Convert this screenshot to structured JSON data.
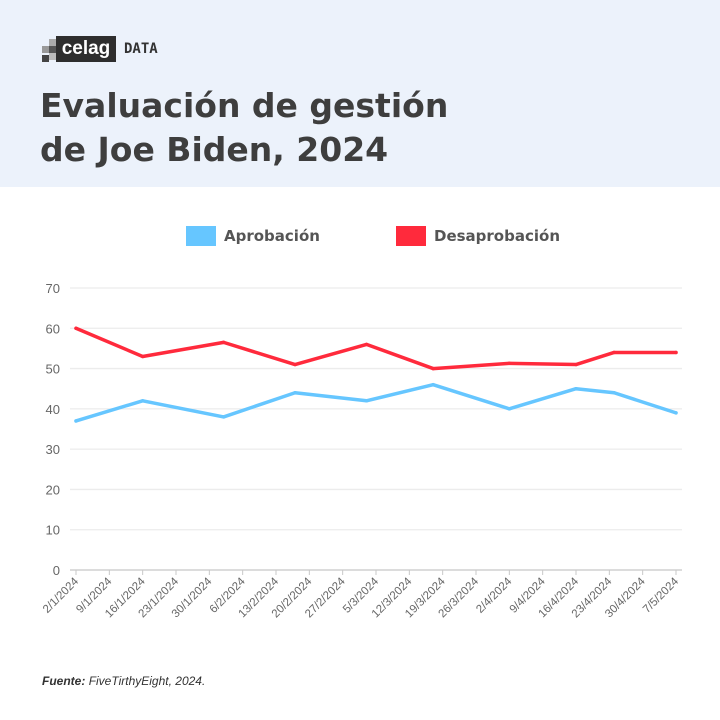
{
  "brand": {
    "logo_text": "celag",
    "suffix": "DATA"
  },
  "title_lines": [
    "Evaluación de gestión",
    "de Joe Biden, 2024"
  ],
  "footer": {
    "label": "Fuente:",
    "text": "FiveTirthyEight, 2024."
  },
  "colors": {
    "header_bg": "#ecf2fb",
    "aprobacion": "#66c6ff",
    "desaprobacion": "#ff2a3c"
  },
  "chart_data": {
    "type": "line",
    "title": "Evaluación de gestión de Joe Biden, 2024",
    "xlabel": "",
    "ylabel": "",
    "ylim": [
      0,
      70
    ],
    "yticks": [
      0,
      10,
      20,
      30,
      40,
      50,
      60,
      70
    ],
    "x_unit": "days since 2/1/2024",
    "xlim": [
      0,
      126
    ],
    "x_tick_labels": [
      "2/1/2024",
      "9/1/2024",
      "16/1/2024",
      "23/1/2024",
      "30/1/2024",
      "6/2/2024",
      "13/2/2024",
      "20/2/2024",
      "27/2/2024",
      "5/3/2024",
      "12/3/2024",
      "19/3/2024",
      "26/3/2024",
      "2/4/2024",
      "9/4/2024",
      "16/4/2024",
      "23/4/2024",
      "30/4/2024",
      "7/5/2024"
    ],
    "x": [
      0,
      14,
      31,
      46,
      61,
      75,
      91,
      105,
      113,
      126
    ],
    "grid": true,
    "legend_position": "top-center",
    "series": [
      {
        "name": "Aprobación",
        "color": "#66c6ff",
        "values": [
          37,
          42,
          38,
          44,
          42,
          46,
          40,
          45,
          44,
          39
        ]
      },
      {
        "name": "Desaprobación",
        "color": "#ff2a3c",
        "values": [
          60,
          53,
          56.5,
          51,
          56,
          50,
          51.3,
          51,
          54,
          54
        ]
      }
    ]
  }
}
